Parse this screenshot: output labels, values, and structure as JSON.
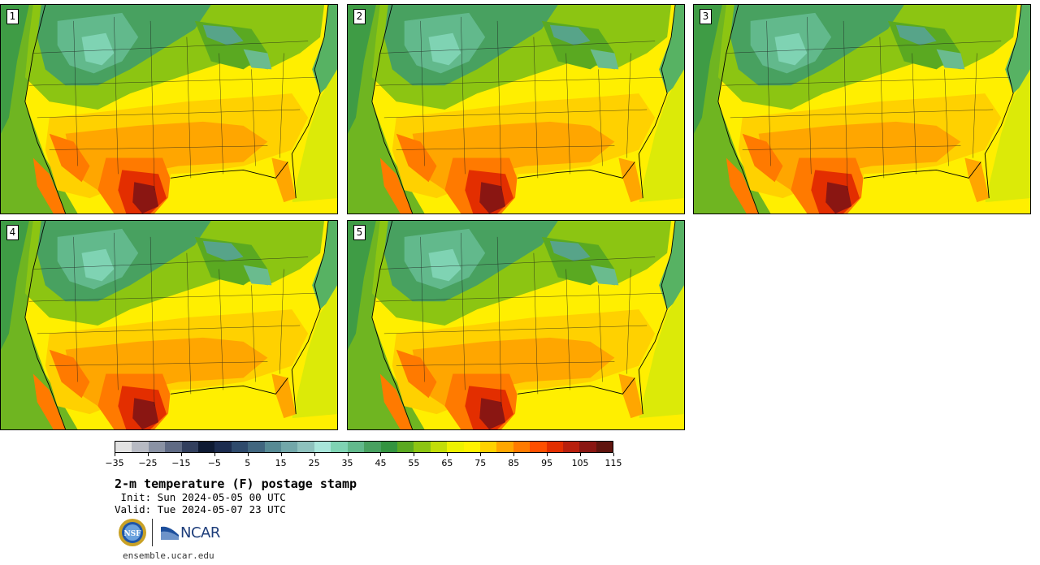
{
  "stamps": [
    {
      "label": "1"
    },
    {
      "label": "2"
    },
    {
      "label": "3"
    },
    {
      "label": "4"
    },
    {
      "label": "5"
    }
  ],
  "colorbar": {
    "colors": [
      "#e2e2e2",
      "#b7bac3",
      "#8a92a4",
      "#5f6a84",
      "#323f5e",
      "#0e1a33",
      "#1c2c4f",
      "#2e4a6c",
      "#41667f",
      "#578a94",
      "#72a7a9",
      "#8ec1bd",
      "#a8e5da",
      "#7fd3b3",
      "#62b98c",
      "#48a160",
      "#339440",
      "#5aa921",
      "#8cc512",
      "#c2dd08",
      "#eef200",
      "#fff200",
      "#ffd100",
      "#ffa600",
      "#ff7a00",
      "#ff4f00",
      "#e32e00",
      "#b81f0d",
      "#8a1612",
      "#5f140e"
    ],
    "tick_labels": [
      "−35",
      "−25",
      "−15",
      "−5",
      "5",
      "15",
      "25",
      "35",
      "45",
      "55",
      "65",
      "75",
      "85",
      "95",
      "105",
      "115"
    ]
  },
  "title": "2-m temperature (F) postage stamp",
  "init_line": " Init: Sun 2024-05-05 00 UTC",
  "valid_line": "Valid: Tue 2024-05-07 23 UTC",
  "logos": {
    "nsf_text": "NSF",
    "ncar_text": "NCAR"
  },
  "url": "ensemble.ucar.edu"
}
